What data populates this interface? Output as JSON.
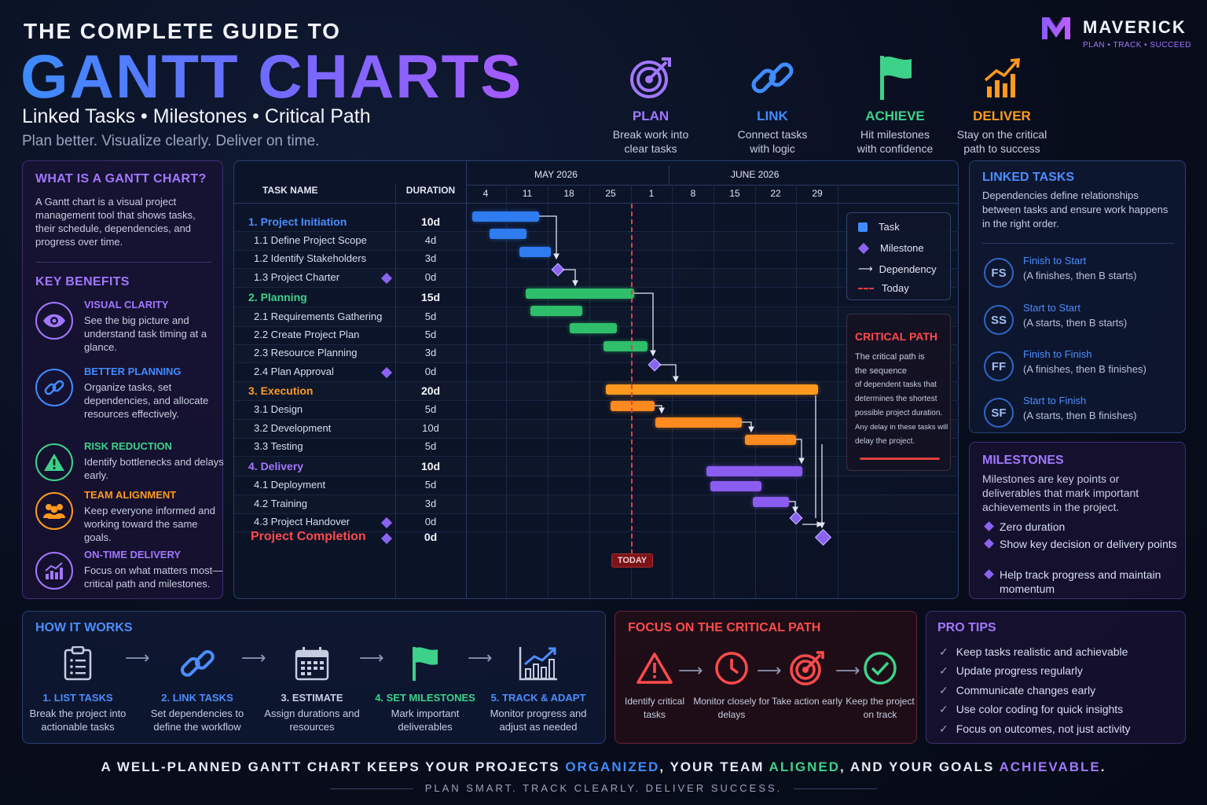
{
  "header": {
    "sup_title": "THE COMPLETE GUIDE TO",
    "title": "GANTT CHARTS",
    "subtitle": "Linked Tasks • Milestones • Critical Path",
    "tagline": "Plan better. Visualize clearly. Deliver on time."
  },
  "brand": {
    "name": "MAVERICK",
    "tagline": "PLAN • TRACK • SUCCEED"
  },
  "top_steps": [
    {
      "label": "PLAN",
      "desc1": "Break work into",
      "desc2": "clear tasks",
      "color": "#a277ff",
      "icon": "target-icon"
    },
    {
      "label": "LINK",
      "desc1": "Connect tasks",
      "desc2": "with logic",
      "color": "#3f8cff",
      "icon": "link-icon"
    },
    {
      "label": "ACHIEVE",
      "desc1": "Hit milestones",
      "desc2": "with confidence",
      "color": "#3ed18a",
      "icon": "flag-icon"
    },
    {
      "label": "DELIVER",
      "desc1": "Stay on the critical",
      "desc2": "path to success",
      "color": "#ff9a1f",
      "icon": "growth-chart-icon"
    }
  ],
  "left_panel": {
    "what_title": "WHAT IS A GANTT CHART?",
    "what_text": "A Gantt chart is a visual project management tool that shows tasks, their schedule, dependencies, and progress over time.",
    "benefits_title": "KEY BENEFITS",
    "benefits": [
      {
        "title": "VISUAL CLARITY",
        "desc": "See the big picture and understand task timing at a glance.",
        "color": "#a277ff",
        "icon": "eye-icon"
      },
      {
        "title": "BETTER PLANNING",
        "desc": "Organize tasks, set dependencies, and allocate resources effectively.",
        "color": "#3f8cff",
        "icon": "link-icon"
      },
      {
        "title": "RISK REDUCTION",
        "desc": "Identify bottlenecks and delays early.",
        "color": "#3ed18a",
        "icon": "warning-icon"
      },
      {
        "title": "TEAM ALIGNMENT",
        "desc": "Keep everyone informed and working toward the same goals.",
        "color": "#ff9a1f",
        "icon": "team-icon"
      },
      {
        "title": "ON-TIME DELIVERY",
        "desc": "Focus on what matters most—critical path and milestones.",
        "color": "#a277ff",
        "icon": "chart-icon"
      }
    ]
  },
  "gantt": {
    "col_task": "TASK NAME",
    "col_duration": "DURATION",
    "months": [
      "MAY 2026",
      "JUNE 2026"
    ],
    "days": [
      "4",
      "11",
      "18",
      "25",
      "1",
      "8",
      "15",
      "22",
      "29"
    ],
    "today_label": "TODAY",
    "rows": [
      {
        "num": "1.",
        "name": "Project Initiation",
        "dur": "10d",
        "group": true,
        "color": "#4c8dff"
      },
      {
        "num": "1.1",
        "name": "Define Project Scope",
        "dur": "4d"
      },
      {
        "num": "1.2",
        "name": "Identify Stakeholders",
        "dur": "3d"
      },
      {
        "num": "1.3",
        "name": "Project Charter",
        "dur": "0d",
        "milestone": true
      },
      {
        "num": "2.",
        "name": "Planning",
        "dur": "15d",
        "group": true,
        "color": "#3ed18a"
      },
      {
        "num": "2.1",
        "name": "Requirements Gathering",
        "dur": "5d"
      },
      {
        "num": "2.2",
        "name": "Create Project Plan",
        "dur": "5d"
      },
      {
        "num": "2.3",
        "name": "Resource Planning",
        "dur": "3d"
      },
      {
        "num": "2.4",
        "name": "Plan Approval",
        "dur": "0d",
        "milestone": true
      },
      {
        "num": "3.",
        "name": "Execution",
        "dur": "20d",
        "group": true,
        "color": "#ff9a1f"
      },
      {
        "num": "3.1",
        "name": "Design",
        "dur": "5d"
      },
      {
        "num": "3.2",
        "name": "Development",
        "dur": "10d"
      },
      {
        "num": "3.3",
        "name": "Testing",
        "dur": "5d"
      },
      {
        "num": "4.",
        "name": "Delivery",
        "dur": "10d",
        "group": true,
        "color": "#a277ff"
      },
      {
        "num": "4.1",
        "name": "Deployment",
        "dur": "5d"
      },
      {
        "num": "4.2",
        "name": "Training",
        "dur": "3d"
      },
      {
        "num": "4.3",
        "name": "Project Handover",
        "dur": "0d",
        "milestone": true
      }
    ],
    "completion": {
      "name": "Project Completion",
      "dur": "0d"
    },
    "legend": {
      "task": "Task",
      "milestone": "Milestone",
      "dependency": "Dependency",
      "today": "Today"
    },
    "critical": {
      "title": "CRITICAL PATH",
      "line1": "The critical path is",
      "line2": "the sequence",
      "line3": "of dependent tasks that",
      "line4": "determines the shortest",
      "line5": "possible project duration.",
      "line6": "Any delay in these tasks will",
      "line7": "delay the project."
    }
  },
  "linked_tasks": {
    "title": "LINKED TASKS",
    "text": "Dependencies define relationships between tasks and ensure work happens in the right order.",
    "types": [
      {
        "abbr": "FS",
        "name": "Finish to Start",
        "desc": "(A finishes, then B starts)"
      },
      {
        "abbr": "SS",
        "name": "Start to Start",
        "desc": "(A starts, then B starts)"
      },
      {
        "abbr": "FF",
        "name": "Finish to Finish",
        "desc": "(A finishes, then B finishes)"
      },
      {
        "abbr": "SF",
        "name": "Start to Finish",
        "desc": "(A starts, then B finishes)"
      }
    ]
  },
  "milestones": {
    "title": "MILESTONES",
    "text": "Milestones are key points or deliverables that mark important achievements in the project.",
    "items": [
      "Zero duration",
      "Show key decision or delivery points",
      "Help track progress and maintain momentum"
    ]
  },
  "how_it_works": {
    "title": "HOW IT WORKS",
    "steps": [
      {
        "label": "1. LIST TASKS",
        "desc": "Break the project into actionable tasks",
        "color": "#4c8dff",
        "icon": "clipboard-icon"
      },
      {
        "label": "2. LINK TASKS",
        "desc": "Set dependencies to define the workflow",
        "color": "#4c8dff",
        "icon": "link-icon"
      },
      {
        "label": "3. ESTIMATE",
        "desc": "Assign durations and resources",
        "color": "#c7cde0",
        "icon": "calendar-icon"
      },
      {
        "label": "4. SET MILESTONES",
        "desc": "Mark important deliverables",
        "color": "#3ed18a",
        "icon": "flag-icon"
      },
      {
        "label": "5. TRACK & ADAPT",
        "desc": "Monitor progress and adjust as needed",
        "color": "#4c8dff",
        "icon": "growth-chart-icon"
      }
    ]
  },
  "critical_focus": {
    "title": "FOCUS ON THE CRITICAL PATH",
    "steps": [
      {
        "desc": "Identify critical tasks",
        "color": "#ff4b4b",
        "icon": "warning-icon"
      },
      {
        "desc": "Monitor closely for delays",
        "color": "#ff4b4b",
        "icon": "clock-icon"
      },
      {
        "desc": "Take action early",
        "color": "#ff4b4b",
        "icon": "target-icon"
      },
      {
        "desc": "Keep the project on track",
        "color": "#3ed18a",
        "icon": "check-circle-icon"
      }
    ]
  },
  "pro_tips": {
    "title": "PRO TIPS",
    "items": [
      "Keep tasks realistic and achievable",
      "Update progress regularly",
      "Communicate changes early",
      "Use color coding for quick insights",
      "Focus on outcomes, not just activity"
    ]
  },
  "footer": {
    "p1": "A WELL-PLANNED GANTT CHART KEEPS YOUR PROJECTS ",
    "w1": "ORGANIZED",
    "p2": ", YOUR TEAM ",
    "w2": "ALIGNED",
    "p3": ", AND YOUR GOALS ",
    "w3": "ACHIEVABLE",
    "p4": ".",
    "sub": "PLAN SMART. TRACK CLEARLY. DELIVER SUCCESS."
  }
}
